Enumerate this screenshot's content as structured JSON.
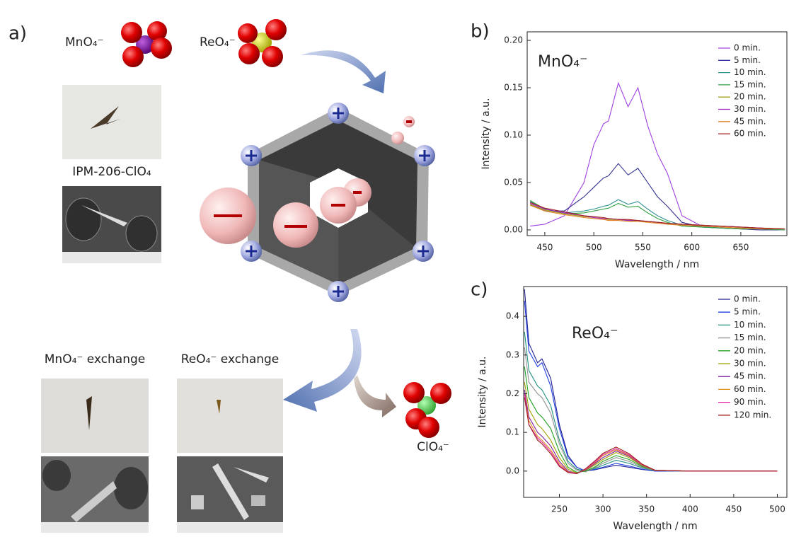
{
  "figure": {
    "panel_a": {
      "label": "a)",
      "mno4": "MnO₄⁻",
      "reo4": "ReO₄⁻",
      "sample": "IPM-206-ClO₄",
      "mno4_exchange": "MnO₄⁻ exchange",
      "reo4_exchange": "ReO₄⁻ exchange",
      "clo4": "ClO₄⁻"
    }
  },
  "chart_data": [
    {
      "type": "line",
      "panel_label": "b)",
      "annotation": "MnO₄⁻",
      "x_label": "Wavelength / nm",
      "y_label": "Intensity / a.u.",
      "x": [
        435,
        450,
        470,
        490,
        500,
        510,
        515,
        525,
        535,
        545,
        555,
        565,
        575,
        590,
        610,
        630,
        650,
        670,
        695
      ],
      "xlim": [
        432,
        697
      ],
      "xticks": [
        450,
        500,
        550,
        600,
        650
      ],
      "ylim": [
        -0.006,
        0.209
      ],
      "yticks": [
        {
          "value": 0,
          "label": "0.00"
        },
        {
          "value": 0.05,
          "label": "0.05"
        },
        {
          "value": 0.1,
          "label": "0.10"
        },
        {
          "value": 0.15,
          "label": "0.15"
        },
        {
          "value": 0.2,
          "label": "0.20"
        }
      ],
      "series": [
        {
          "name": "0 min.",
          "color": "#a040e0",
          "values": [
            0.004,
            0.006,
            0.015,
            0.05,
            0.09,
            0.112,
            0.115,
            0.155,
            0.13,
            0.15,
            0.11,
            0.08,
            0.06,
            0.015,
            0.004,
            0.002,
            0.001,
            0,
            0
          ]
        },
        {
          "name": "5 min.",
          "color": "#303090",
          "values": [
            0.027,
            0.02,
            0.02,
            0.035,
            0.045,
            0.055,
            0.057,
            0.07,
            0.058,
            0.065,
            0.05,
            0.035,
            0.025,
            0.008,
            0.003,
            0.002,
            0.001,
            0,
            0
          ]
        },
        {
          "name": "10 min.",
          "color": "#309090",
          "values": [
            0.03,
            0.022,
            0.018,
            0.02,
            0.022,
            0.025,
            0.026,
            0.032,
            0.027,
            0.03,
            0.022,
            0.015,
            0.01,
            0.005,
            0.003,
            0.002,
            0.001,
            0.001,
            0
          ]
        },
        {
          "name": "15 min.",
          "color": "#30a040",
          "values": [
            0.031,
            0.022,
            0.017,
            0.018,
            0.02,
            0.022,
            0.023,
            0.028,
            0.024,
            0.025,
            0.018,
            0.012,
            0.008,
            0.004,
            0.003,
            0.002,
            0.001,
            0.001,
            0
          ]
        },
        {
          "name": "20 min.",
          "color": "#a0a020",
          "values": [
            0.027,
            0.021,
            0.017,
            0.014,
            0.013,
            0.012,
            0.011,
            0.011,
            0.01,
            0.009,
            0.009,
            0.008,
            0.007,
            0.006,
            0.005,
            0.004,
            0.003,
            0.002,
            0.001
          ]
        },
        {
          "name": "30 min.",
          "color": "#a020c0",
          "values": [
            0.028,
            0.022,
            0.018,
            0.015,
            0.013,
            0.012,
            0.012,
            0.011,
            0.01,
            0.01,
            0.009,
            0.008,
            0.007,
            0.006,
            0.005,
            0.004,
            0.003,
            0.002,
            0.001
          ]
        },
        {
          "name": "45 min.",
          "color": "#e08020",
          "values": [
            0.026,
            0.02,
            0.016,
            0.013,
            0.012,
            0.011,
            0.01,
            0.01,
            0.009,
            0.009,
            0.008,
            0.007,
            0.006,
            0.005,
            0.004,
            0.003,
            0.002,
            0.001,
            0.001
          ]
        },
        {
          "name": "60 min.",
          "color": "#a02020",
          "values": [
            0.029,
            0.023,
            0.019,
            0.015,
            0.014,
            0.013,
            0.012,
            0.011,
            0.011,
            0.01,
            0.009,
            0.008,
            0.007,
            0.006,
            0.005,
            0.004,
            0.003,
            0.002,
            0.001
          ]
        }
      ]
    },
    {
      "type": "line",
      "panel_label": "c)",
      "annotation": "ReO₄⁻",
      "x_label": "Wavelength / nm",
      "y_label": "Intensity / a.u.",
      "x": [
        210,
        215,
        225,
        230,
        240,
        250,
        260,
        270,
        280,
        290,
        300,
        315,
        330,
        345,
        360,
        400,
        450,
        500
      ],
      "xlim": [
        209,
        511
      ],
      "xticks": [
        250,
        300,
        350,
        400,
        450,
        500
      ],
      "ylim": [
        -0.068,
        0.477
      ],
      "yticks": [
        {
          "value": 0,
          "label": "0.0"
        },
        {
          "value": 0.1,
          "label": "0.1"
        },
        {
          "value": 0.2,
          "label": "0.2"
        },
        {
          "value": 0.3,
          "label": "0.3"
        },
        {
          "value": 0.4,
          "label": "0.4"
        }
      ],
      "series": [
        {
          "name": "0 min.",
          "color": "#202090",
          "values": [
            0.47,
            0.33,
            0.28,
            0.29,
            0.24,
            0.12,
            0.04,
            0.01,
            0,
            0.003,
            0.008,
            0.015,
            0.01,
            0.004,
            0,
            0,
            0,
            0
          ]
        },
        {
          "name": "5 min.",
          "color": "#2040e0",
          "values": [
            0.44,
            0.31,
            0.27,
            0.28,
            0.22,
            0.11,
            0.035,
            0.01,
            0,
            0.004,
            0.01,
            0.02,
            0.013,
            0.005,
            0,
            0,
            0,
            0
          ]
        },
        {
          "name": "10 min.",
          "color": "#209080",
          "values": [
            0.36,
            0.26,
            0.22,
            0.21,
            0.17,
            0.08,
            0.025,
            0.005,
            0,
            0.006,
            0.015,
            0.028,
            0.02,
            0.008,
            0.001,
            0,
            0,
            0
          ]
        },
        {
          "name": "15 min.",
          "color": "#909090",
          "values": [
            0.32,
            0.23,
            0.2,
            0.19,
            0.15,
            0.07,
            0.02,
            0.002,
            -0.002,
            0.008,
            0.02,
            0.035,
            0.025,
            0.01,
            0.001,
            0,
            0,
            0
          ]
        },
        {
          "name": "20 min.",
          "color": "#20a020",
          "values": [
            0.27,
            0.19,
            0.15,
            0.14,
            0.11,
            0.05,
            0.01,
            -0.003,
            0,
            0.01,
            0.025,
            0.04,
            0.03,
            0.012,
            0.002,
            0,
            0,
            0
          ]
        },
        {
          "name": "30 min.",
          "color": "#a0a000",
          "values": [
            0.23,
            0.16,
            0.12,
            0.11,
            0.08,
            0.035,
            0.005,
            -0.005,
            0.002,
            0.015,
            0.03,
            0.048,
            0.035,
            0.014,
            0.002,
            0,
            0,
            0
          ]
        },
        {
          "name": "45 min.",
          "color": "#8020a0",
          "values": [
            0.21,
            0.14,
            0.1,
            0.09,
            0.065,
            0.025,
            0,
            -0.006,
            0.003,
            0.018,
            0.035,
            0.052,
            0.038,
            0.015,
            0.002,
            0,
            0,
            0
          ]
        },
        {
          "name": "60 min.",
          "color": "#e09020",
          "values": [
            0.2,
            0.13,
            0.09,
            0.08,
            0.055,
            0.02,
            -0.002,
            -0.006,
            0.004,
            0.02,
            0.04,
            0.055,
            0.04,
            0.016,
            0.002,
            0,
            0,
            0
          ]
        },
        {
          "name": "90 min.",
          "color": "#e020a0",
          "values": [
            0.2,
            0.12,
            0.085,
            0.075,
            0.05,
            0.015,
            -0.003,
            -0.006,
            0.005,
            0.022,
            0.043,
            0.058,
            0.042,
            0.017,
            0.002,
            0,
            0,
            0
          ]
        },
        {
          "name": "120 min.",
          "color": "#a02020",
          "values": [
            0.19,
            0.12,
            0.08,
            0.07,
            0.045,
            0.012,
            -0.004,
            -0.007,
            0.006,
            0.025,
            0.046,
            0.062,
            0.045,
            0.018,
            0.002,
            0,
            0,
            0
          ]
        }
      ]
    }
  ]
}
